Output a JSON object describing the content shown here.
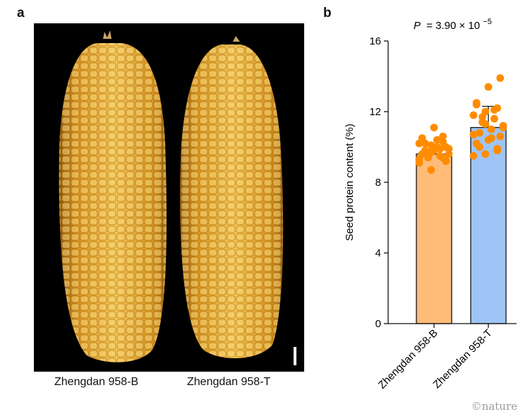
{
  "figure": {
    "panel_a_label": "a",
    "panel_b_label": "b",
    "photo_left_label": "Zhengdan 958-B",
    "photo_right_label": "Zhengdan 958-T",
    "credit": "©nature"
  },
  "colors": {
    "bar_b": "#ffbb78",
    "bar_t": "#9ec5f5",
    "dots": "#ff8c00",
    "kernel": "#e8a325",
    "kernel_light": "#f5d67a"
  },
  "chart_data": {
    "type": "bar",
    "title": "P = 3.90 × 10⁻⁵",
    "p_prefix": "P",
    "p_value_text": "= 3.90 × 10",
    "p_exponent": "−5",
    "xlabel": "",
    "ylabel": "Seed protein content (%)",
    "ylim": [
      0,
      16
    ],
    "yticks": [
      0,
      4,
      8,
      12,
      16
    ],
    "ytick_labels": [
      "0",
      "4",
      "8",
      "12",
      "16"
    ],
    "categories": [
      "Zhengdan 958-B",
      "Zhengdan 958-T"
    ],
    "values": [
      9.6,
      11.1
    ],
    "errors": [
      0.25,
      1.2
    ],
    "points": [
      [
        9.1,
        8.7,
        9.4,
        9.6,
        9.8,
        10.0,
        10.2,
        10.4,
        9.9,
        9.7,
        9.5,
        9.3,
        10.1,
        10.3,
        10.5,
        11.1,
        9.2,
        9.8,
        10.0,
        9.6,
        9.4,
        9.9,
        10.2,
        9.7,
        10.6
      ],
      [
        9.5,
        9.6,
        9.9,
        10.2,
        10.4,
        10.6,
        10.8,
        11.0,
        11.2,
        11.4,
        11.6,
        11.8,
        12.0,
        12.2,
        12.4,
        13.4,
        13.9,
        10.0,
        10.5,
        11.1,
        11.7,
        12.1,
        10.7,
        11.3,
        9.8,
        12.5
      ]
    ]
  }
}
